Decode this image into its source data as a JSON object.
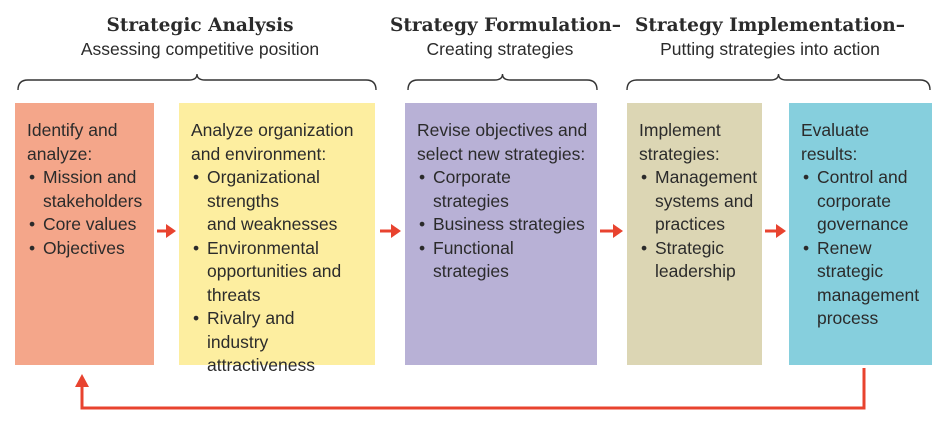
{
  "phases": [
    {
      "title": "Strategic Analysis",
      "subtitle": "Assessing competitive position"
    },
    {
      "title": "Strategy Formulation–",
      "subtitle": "Creating strategies"
    },
    {
      "title": "Strategy Implementation–",
      "subtitle": "Putting strategies into action"
    }
  ],
  "boxes": [
    {
      "color": "#f4a68a",
      "lead": "Identify and\nanalyze:",
      "items": [
        "Mission and\nstakeholders",
        "Core values",
        "Objectives"
      ]
    },
    {
      "color": "#fdeea0",
      "lead": "Analyze organization\nand environment:",
      "items": [
        "Organizational\nstrengths\nand weaknesses",
        "Environmental\nopportunities and\nthreats",
        "Rivalry and\nindustry attractiveness"
      ]
    },
    {
      "color": "#b8b1d6",
      "lead": "Revise objectives and\nselect new strategies:",
      "items": [
        "Corporate strategies",
        "Business strategies",
        "Functional strategies"
      ]
    },
    {
      "color": "#dcd6b4",
      "lead": "Implement\nstrategies:",
      "items": [
        "Management\nsystems and\npractices",
        "Strategic\nleadership"
      ]
    },
    {
      "color": "#86cfdd",
      "lead": "Evaluate results:",
      "items": [
        "Control and\ncorporate\ngovernance",
        "Renew\nstrategic\nmanagement\nprocess"
      ]
    }
  ],
  "colors": {
    "arrow": "#e8432f",
    "bracket": "#333333"
  },
  "icons": {
    "flow_arrow": "right-arrow-icon",
    "feedback_loop": "feedback-loop-arrow"
  }
}
